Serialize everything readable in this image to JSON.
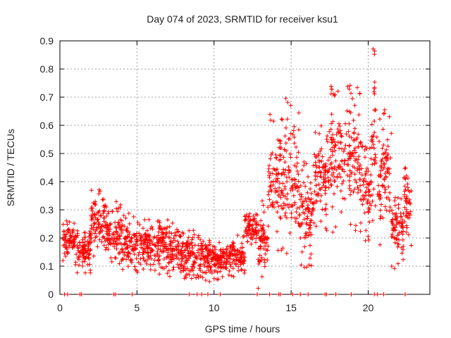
{
  "chart_data": {
    "type": "scatter",
    "title": "Day 074 of 2023, SRMTID for receiver ksu1",
    "xlabel": "GPS time / hours",
    "ylabel": "SRMTID / TECUs",
    "xlim": [
      0,
      24
    ],
    "ylim": [
      0,
      0.9
    ],
    "xticks": [
      0,
      5,
      10,
      15,
      20
    ],
    "xtick_labels": [
      "0",
      "5",
      "10",
      "15",
      "20"
    ],
    "yticks": [
      0,
      0.1,
      0.2,
      0.3,
      0.4,
      0.5,
      0.6,
      0.7,
      0.8,
      0.9
    ],
    "ytick_labels": [
      "0",
      "0.1",
      "0.2",
      "0.3",
      "0.4",
      "0.5",
      "0.6",
      "0.7",
      "0.8",
      "0.9"
    ],
    "grid": true,
    "marker": "+",
    "color": "#ff0000",
    "seed": 74,
    "envelope": [
      {
        "t_start": 0.2,
        "t_end": 1.0,
        "low": 0.12,
        "high": 0.27
      },
      {
        "t_start": 1.0,
        "t_end": 2.0,
        "low": 0.07,
        "high": 0.24
      },
      {
        "t_start": 2.0,
        "t_end": 3.0,
        "low": 0.13,
        "high": 0.38
      },
      {
        "t_start": 3.0,
        "t_end": 4.0,
        "low": 0.1,
        "high": 0.33
      },
      {
        "t_start": 4.0,
        "t_end": 5.0,
        "low": 0.07,
        "high": 0.29
      },
      {
        "t_start": 5.0,
        "t_end": 6.0,
        "low": 0.06,
        "high": 0.28
      },
      {
        "t_start": 6.0,
        "t_end": 7.0,
        "low": 0.07,
        "high": 0.27
      },
      {
        "t_start": 7.0,
        "t_end": 8.0,
        "low": 0.05,
        "high": 0.26
      },
      {
        "t_start": 8.0,
        "t_end": 9.0,
        "low": 0.05,
        "high": 0.24
      },
      {
        "t_start": 9.0,
        "t_end": 10.0,
        "low": 0.04,
        "high": 0.22
      },
      {
        "t_start": 10.0,
        "t_end": 11.0,
        "low": 0.05,
        "high": 0.19
      },
      {
        "t_start": 11.0,
        "t_end": 12.0,
        "low": 0.06,
        "high": 0.21
      },
      {
        "t_start": 12.0,
        "t_end": 12.8,
        "low": 0.16,
        "high": 0.3
      },
      {
        "t_start": 12.8,
        "t_end": 13.5,
        "low": 0.02,
        "high": 0.34
      },
      {
        "t_start": 13.5,
        "t_end": 14.5,
        "low": 0.15,
        "high": 0.64
      },
      {
        "t_start": 14.5,
        "t_end": 15.5,
        "low": 0.12,
        "high": 0.71
      },
      {
        "t_start": 15.5,
        "t_end": 16.5,
        "low": 0.08,
        "high": 0.48
      },
      {
        "t_start": 16.5,
        "t_end": 17.5,
        "low": 0.22,
        "high": 0.6
      },
      {
        "t_start": 17.5,
        "t_end": 18.5,
        "low": 0.22,
        "high": 0.74
      },
      {
        "t_start": 18.5,
        "t_end": 19.5,
        "low": 0.22,
        "high": 0.75
      },
      {
        "t_start": 19.5,
        "t_end": 20.2,
        "low": 0.18,
        "high": 0.55
      },
      {
        "t_start": 20.2,
        "t_end": 20.6,
        "low": 0.26,
        "high": 0.88
      },
      {
        "t_start": 20.6,
        "t_end": 21.5,
        "low": 0.16,
        "high": 0.66
      },
      {
        "t_start": 21.5,
        "t_end": 22.3,
        "low": 0.09,
        "high": 0.38
      },
      {
        "t_start": 22.3,
        "t_end": 22.8,
        "low": 0.17,
        "high": 0.48
      }
    ],
    "markers_at_zero": [
      0.3,
      0.5,
      1.3,
      1.4,
      3.5,
      3.6,
      4.7,
      8.4,
      8.9,
      9.2,
      9.6,
      10.4,
      12.8,
      13.6,
      14.2,
      14.3,
      15.1,
      15.6,
      16.1,
      17.2,
      17.3,
      17.9,
      18.9,
      20.4,
      20.6,
      21.0,
      22.4
    ]
  }
}
